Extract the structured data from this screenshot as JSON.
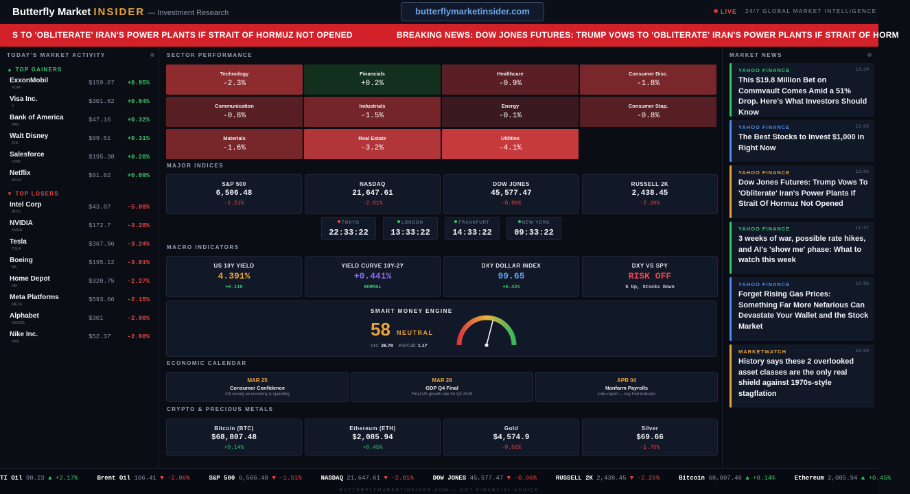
{
  "header": {
    "logo_main": "Butterfly Market ",
    "logo_accent": "INSIDER",
    "logo_sub": "— Investment Research",
    "domain": "butterflymarketinsider.com",
    "live": "LIVE",
    "tagline": "24/7 GLOBAL MARKET INTELLIGENCE"
  },
  "breaking": {
    "text_left": "S TO 'OBLITERATE' IRAN'S POWER PLANTS IF STRAIT OF HORMUZ NOT OPENED",
    "text_right": "BREAKING NEWS: DOW JONES FUTURES: TRUMP VOWS TO 'OBLITERATE' IRAN'S POWER PLANTS IF STRAIT OF HORM"
  },
  "market_activity": {
    "title": "TODAY'S MARKET ACTIVITY",
    "gainers_label": "▲ TOP GAINERS",
    "losers_label": "▼ TOP LOSERS",
    "gainers": [
      {
        "name": "ExxonMobil",
        "ticker": "XOM",
        "price": "$159.67",
        "change": "+0.95%"
      },
      {
        "name": "Visa Inc.",
        "ticker": "V",
        "price": "$301.62",
        "change": "+0.64%"
      },
      {
        "name": "Bank of America",
        "ticker": "BAC",
        "price": "$47.16",
        "change": "+0.32%"
      },
      {
        "name": "Walt Disney",
        "ticker": "DIS",
        "price": "$99.51",
        "change": "+0.31%"
      },
      {
        "name": "Salesforce",
        "ticker": "CRM",
        "price": "$195.38",
        "change": "+0.20%"
      },
      {
        "name": "Netflix",
        "ticker": "NFLX",
        "price": "$91.82",
        "change": "+0.09%"
      }
    ],
    "losers": [
      {
        "name": "Intel Corp",
        "ticker": "INTC",
        "price": "$43.87",
        "change": "-5.09%"
      },
      {
        "name": "NVIDIA",
        "ticker": "NVDA",
        "price": "$172.7",
        "change": "-3.28%"
      },
      {
        "name": "Tesla",
        "ticker": "TSLA",
        "price": "$367.96",
        "change": "-3.24%"
      },
      {
        "name": "Boeing",
        "ticker": "BA",
        "price": "$195.12",
        "change": "-3.01%"
      },
      {
        "name": "Home Depot",
        "ticker": "HD",
        "price": "$320.75",
        "change": "-2.27%"
      },
      {
        "name": "Meta Platforms",
        "ticker": "META",
        "price": "$593.66",
        "change": "-2.15%"
      },
      {
        "name": "Alphabet",
        "ticker": "GOOGL",
        "price": "$301",
        "change": "-2.00%"
      },
      {
        "name": "Nike Inc.",
        "ticker": "NKE",
        "price": "$52.37",
        "change": "-2.00%"
      }
    ]
  },
  "sector_performance": {
    "title": "SECTOR PERFORMANCE",
    "sectors": [
      {
        "name": "Technology",
        "value": "-2.3%",
        "color": "#8e2b2f"
      },
      {
        "name": "Financials",
        "value": "+0.2%",
        "color": "#13301f"
      },
      {
        "name": "Healthcare",
        "value": "-0.9%",
        "color": "#5a1f24"
      },
      {
        "name": "Consumer Disc.",
        "value": "-1.8%",
        "color": "#7a272b"
      },
      {
        "name": "Communication",
        "value": "-0.8%",
        "color": "#571e23"
      },
      {
        "name": "Industrials",
        "value": "-1.5%",
        "color": "#732529"
      },
      {
        "name": "Energy",
        "value": "-0.1%",
        "color": "#3a1a20"
      },
      {
        "name": "Consumer Stap.",
        "value": "-0.8%",
        "color": "#571e23"
      },
      {
        "name": "Materials",
        "value": "-1.6%",
        "color": "#772629"
      },
      {
        "name": "Real Estate",
        "value": "-3.2%",
        "color": "#b13539"
      },
      {
        "name": "Utilities",
        "value": "-4.1%",
        "color": "#c63a3e"
      }
    ]
  },
  "major_indices": {
    "title": "MAJOR INDICES",
    "items": [
      {
        "name": "S&P 500",
        "value": "6,506.48",
        "change": "-1.51%"
      },
      {
        "name": "NASDAQ",
        "value": "21,647.61",
        "change": "-2.01%"
      },
      {
        "name": "DOW JONES",
        "value": "45,577.47",
        "change": "-0.96%"
      },
      {
        "name": "RUSSELL 2K",
        "value": "2,438.45",
        "change": "-2.26%"
      }
    ],
    "clocks": [
      {
        "city": "TOKYO",
        "time": "22:33:22",
        "dot": "#e05252"
      },
      {
        "city": "LONDON",
        "time": "13:33:22",
        "dot": "#37c86a"
      },
      {
        "city": "FRANKFURT",
        "time": "14:33:22",
        "dot": "#37c86a"
      },
      {
        "city": "NEW YORK",
        "time": "09:33:22",
        "dot": "#37c86a"
      }
    ]
  },
  "macro": {
    "title": "MACRO INDICATORS",
    "items": [
      {
        "name": "US 10Y YIELD",
        "value": "4.391%",
        "sub": "+0.110",
        "color": "#e8a33a",
        "sub_color": "#37c86a"
      },
      {
        "name": "YIELD CURVE 10Y-2Y",
        "value": "+0.441%",
        "sub": "NORMAL",
        "color": "#8d6cf0",
        "sub_color": "#37c86a"
      },
      {
        "name": "DXY DOLLAR INDEX",
        "value": "99.65",
        "sub": "+0.42%",
        "color": "#5b9cf0",
        "sub_color": "#37c86a"
      },
      {
        "name": "DXY VS SPY",
        "value": "RISK OFF",
        "sub": "$ Up, Stocks Down",
        "color": "#ef4545",
        "sub_color": "#cfd4de"
      }
    ]
  },
  "smart_money": {
    "title": "SMART MONEY ENGINE",
    "score": "58",
    "score_value": 58,
    "label": "NEUTRAL",
    "vix_label": "VIX:",
    "vix": "26.78",
    "pc_label": "Put/Call:",
    "pc": "1.17"
  },
  "calendar": {
    "title": "ECONOMIC CALENDAR",
    "events": [
      {
        "date": "MAR 25",
        "event": "Consumer Confidence",
        "desc": "CB survey on economy & spending"
      },
      {
        "date": "MAR 28",
        "event": "GDP Q4 Final",
        "desc": "Final US growth rate for Q4 2025"
      },
      {
        "date": "APR 04",
        "event": "Nonfarm Payrolls",
        "desc": "Jobs report — key Fed indicator"
      }
    ]
  },
  "crypto": {
    "title": "CRYPTO & PRECIOUS METALS",
    "items": [
      {
        "name": "Bitcoin (BTC)",
        "value": "$68,807.48",
        "change": "+0.14%"
      },
      {
        "name": "Ethereum (ETH)",
        "value": "$2,085.94",
        "change": "+0.45%"
      },
      {
        "name": "Gold",
        "value": "$4,574.9",
        "change": "-0.56%"
      },
      {
        "name": "Silver",
        "value": "$69.66",
        "change": "-1.75%"
      }
    ]
  },
  "news": {
    "title": "MARKET NEWS",
    "items": [
      {
        "source": "YAHOO FINANCE",
        "time": "13:10",
        "headline": "This $19.8 Million Bet on Commvault Comes Amid a 51% Drop. Here's What Investors Should Know",
        "color": "#37c86a"
      },
      {
        "source": "YAHOO FINANCE",
        "time": "13:05",
        "headline": "The Best Stocks to Invest $1,000 in Right Now",
        "color": "#4a8ff0"
      },
      {
        "source": "YAHOO FINANCE",
        "time": "13:04",
        "headline": "Dow Jones Futures: Trump Vows To 'Obliterate' Iran's Power Plants If Strait Of Hormuz Not Opened",
        "color": "#e8a33a"
      },
      {
        "source": "YAHOO FINANCE",
        "time": "11:37",
        "headline": "3 weeks of war, possible rate hikes, and AI's 'show me' phase: What to watch this week",
        "color": "#37c86a"
      },
      {
        "source": "YAHOO FINANCE",
        "time": "10:56",
        "headline": "Forget Rising Gas Prices: Something Far More Nefarious Can Devastate Your Wallet and the Stock Market",
        "color": "#4a8ff0"
      },
      {
        "source": "MARKETWATCH",
        "time": "10:00",
        "headline": "History says these 2 overlooked asset classes are the only real shield against 1970s-style stagflation",
        "color": "#e8a33a"
      }
    ]
  },
  "ticker": [
    {
      "symbol": "TI Oil",
      "price": "98.23",
      "change": "▲ +2.17%",
      "dir": "up"
    },
    {
      "symbol": "Brent Oil",
      "price": "106.41",
      "change": "▼ -2.06%",
      "dir": "dn"
    },
    {
      "symbol": "S&P 500",
      "price": "6,506.48",
      "change": "▼ -1.51%",
      "dir": "dn"
    },
    {
      "symbol": "NASDAQ",
      "price": "21,647.61",
      "change": "▼ -2.01%",
      "dir": "dn"
    },
    {
      "symbol": "DOW JONES",
      "price": "45,577.47",
      "change": "▼ -0.96%",
      "dir": "dn"
    },
    {
      "symbol": "RUSSELL 2K",
      "price": "2,438.45",
      "change": "▼ -2.26%",
      "dir": "dn"
    },
    {
      "symbol": "Bitcoin",
      "price": "68,807.48",
      "change": "▲ +0.14%",
      "dir": "up"
    },
    {
      "symbol": "Ethereum",
      "price": "2,085.94",
      "change": "▲ +0.45%",
      "dir": "up"
    }
  ],
  "footer": "BUTTERFLYMARKETINSIDER.COM — NOT FINANCIAL ADVICE"
}
